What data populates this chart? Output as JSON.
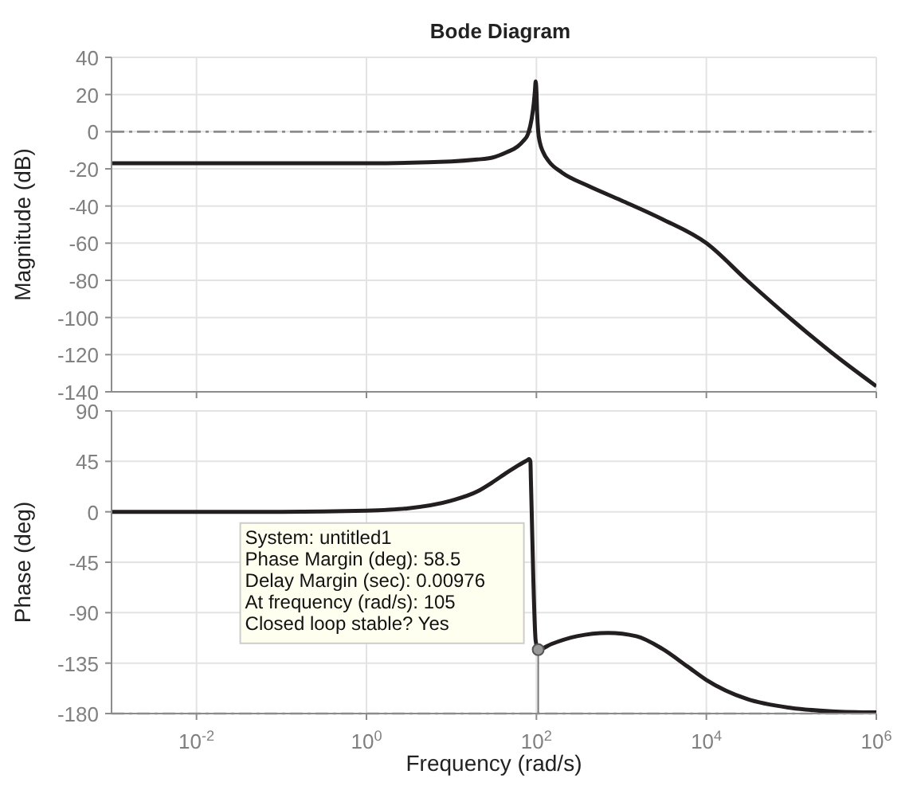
{
  "chart_data": [
    {
      "type": "line",
      "title": "Bode Diagram",
      "ylabel": "Magnitude (dB)",
      "log": "x",
      "grid": true,
      "tick_labels": "y",
      "marker": "none",
      "line_style": "solid",
      "xlim": [
        0.001,
        1000000
      ],
      "xticks": [
        {
          "value": 0.01,
          "label": null
        },
        {
          "value": 1,
          "label": null
        },
        {
          "value": 100,
          "label": null
        },
        {
          "value": 10000,
          "label": null
        },
        {
          "value": 1000000,
          "label": null
        }
      ],
      "ylim": [
        -140,
        40
      ],
      "yticks": [
        -140,
        -120,
        -100,
        -80,
        -60,
        -40,
        -20,
        0,
        20,
        40
      ],
      "x": [
        0.001,
        0.01,
        0.1,
        1,
        10,
        20,
        30,
        45,
        60,
        70,
        80,
        88,
        93,
        96,
        98,
        100,
        102,
        105,
        110,
        120,
        140,
        200,
        400,
        1000,
        3000,
        10000,
        30000,
        100000,
        300000,
        1000000
      ],
      "series": [
        {
          "color": "#231f20",
          "values": [
            -17,
            -17,
            -17,
            -17,
            -16,
            -15,
            -14,
            -11,
            -8,
            -5,
            -1,
            7,
            15,
            22,
            27,
            22,
            10,
            0,
            -6,
            -11,
            -16,
            -22,
            -29,
            -37,
            -47,
            -60,
            -80,
            -101,
            -119,
            -137
          ]
        }
      ],
      "ref_lines": [
        {
          "axis": "y",
          "value": 0,
          "color": "#8c8c8c",
          "line_style": "dashed"
        }
      ]
    },
    {
      "type": "line",
      "ylabel": "Phase (deg)",
      "xlabel": "Frequency  (rad/s)",
      "log": "x",
      "grid": true,
      "marker": "none",
      "line_style": "solid",
      "xlim": [
        0.001,
        1000000
      ],
      "xticks": [
        {
          "value": 0.01,
          "label": "10$^{-2}$"
        },
        {
          "value": 1,
          "label": "10$^{0}$"
        },
        {
          "value": 100,
          "label": "10$^{2}$"
        },
        {
          "value": 10000,
          "label": "10$^{4}$"
        },
        {
          "value": 1000000,
          "label": "10$^{6}$"
        }
      ],
      "ylim": [
        -180,
        90
      ],
      "yticks": [
        -180,
        -135,
        -90,
        -45,
        0,
        45,
        90
      ],
      "x": [
        0.001,
        0.01,
        0.1,
        1,
        3,
        10,
        20,
        30,
        45,
        60,
        70,
        78,
        82,
        85,
        86,
        88,
        92,
        98,
        105,
        150,
        300,
        700,
        1500,
        3000,
        6000,
        10000,
        30000,
        100000,
        300000,
        1000000
      ],
      "series": [
        {
          "color": "#231f20",
          "values": [
            0,
            0,
            0,
            1,
            3,
            10,
            18,
            26,
            35,
            41,
            44,
            46,
            47,
            45,
            30,
            0,
            -60,
            -115,
            -123,
            -118,
            -111,
            -108,
            -111,
            -122,
            -138,
            -150,
            -167,
            -175,
            -178,
            -179
          ]
        },
        {
          "type": "line",
          "color": "#777777",
          "x": [
            105,
            105
          ],
          "values": [
            -123,
            -180
          ]
        }
      ],
      "ref_lines": [
        {
          "axis": "y",
          "value": -180,
          "color": "#8c8c8c",
          "line_style": "dashed"
        }
      ],
      "annotations": [
        {
          "text": "System: untitled1\nPhase Margin (deg): 58.5\nDelay Margin (sec): 0.00976\nAt frequency (rad/s): 105\nClosed loop stable? Yes",
          "x": 105,
          "y": -123
        }
      ]
    }
  ]
}
